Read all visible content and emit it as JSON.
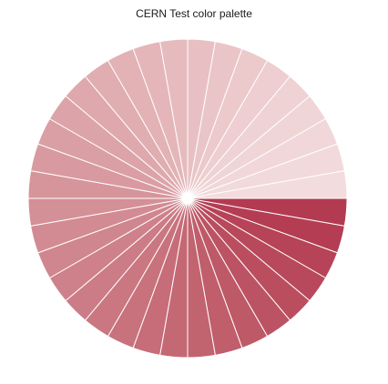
{
  "chart_data": {
    "type": "pie",
    "title": "CERN Test color palette",
    "start_angle_deg": 0,
    "direction": "clockwise",
    "slice_count": 36,
    "values": [
      1,
      1,
      1,
      1,
      1,
      1,
      1,
      1,
      1,
      1,
      1,
      1,
      1,
      1,
      1,
      1,
      1,
      1,
      1,
      1,
      1,
      1,
      1,
      1,
      1,
      1,
      1,
      1,
      1,
      1,
      1,
      1,
      1,
      1,
      1,
      1
    ],
    "colors": [
      "#b23b52",
      "#b43d54",
      "#b64357",
      "#b8485b",
      "#ba4e5f",
      "#bc5364",
      "#be5968",
      "#c05e6c",
      "#c26370",
      "#c46874",
      "#c66d79",
      "#c8727d",
      "#ca7781",
      "#cc7c86",
      "#ce818a",
      "#d0868e",
      "#d28b93",
      "#d49097",
      "#d6959b",
      "#d89aa0",
      "#da9fa4",
      "#dca4a8",
      "#dea8ad",
      "#e0adb1",
      "#e2b2b5",
      "#e4b6ba",
      "#e6bbbe",
      "#e8c0c3",
      "#eac5c7",
      "#ecc9cb",
      "#eeced0",
      "#efd2d4",
      "#f0d5d7",
      "#f1d7d9",
      "#f2d9db",
      "#f3dcdd"
    ],
    "stroke_color": "#ffffff"
  }
}
